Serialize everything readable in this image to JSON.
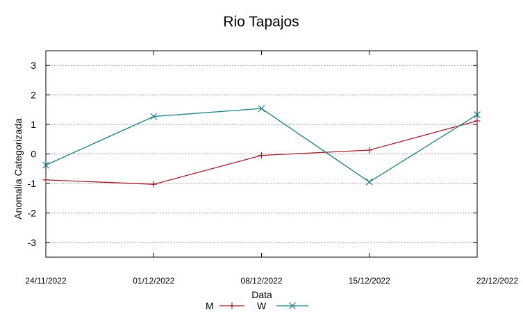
{
  "chart_data": {
    "type": "line",
    "title": "Rio Tapajos",
    "xlabel": "Data",
    "ylabel": "Anomalia Categorizada",
    "categories": [
      "24/11/2022",
      "01/12/2022",
      "08/12/2022",
      "15/12/2022",
      "22/12/2022"
    ],
    "yticks": [
      "3",
      "2",
      "1",
      "0",
      "-1",
      "-2",
      "-3"
    ],
    "ylim": [
      -3.5,
      3.5
    ],
    "grid": true,
    "legend_position": "bottom",
    "series": [
      {
        "name": "M",
        "color": "#a0202a",
        "marker": "plus",
        "values": [
          -0.88,
          -1.03,
          -0.05,
          0.13,
          1.12
        ]
      },
      {
        "name": "W",
        "color": "#1a7f86",
        "marker": "cross",
        "values": [
          -0.38,
          1.27,
          1.54,
          -0.95,
          1.33
        ]
      }
    ]
  }
}
